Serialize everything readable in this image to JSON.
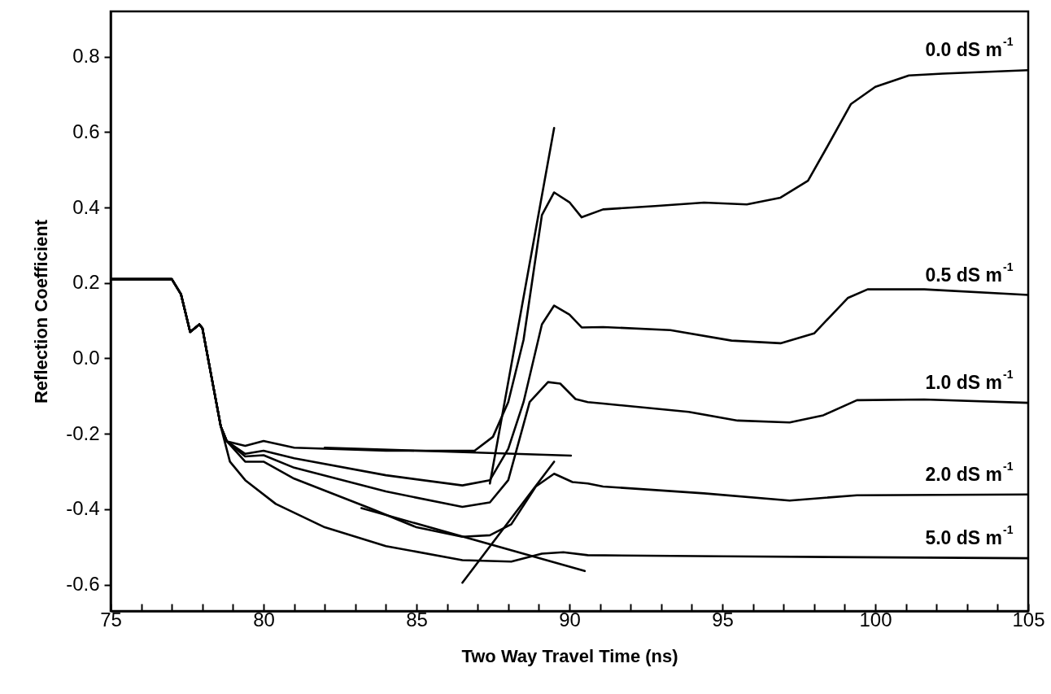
{
  "chart_data": {
    "type": "line",
    "xlabel": "Two Way Travel Time (ns)",
    "ylabel": "Reflection Coefficient",
    "xlim": [
      75,
      105
    ],
    "ylim": [
      -0.67,
      0.92
    ],
    "xticks": [
      75,
      {
        "value": 76,
        "label": null
      },
      {
        "value": 77,
        "label": null
      },
      {
        "value": 78,
        "label": null
      },
      {
        "value": 79,
        "label": null
      },
      80,
      {
        "value": 81,
        "label": null
      },
      {
        "value": 82,
        "label": null
      },
      {
        "value": 83,
        "label": null
      },
      {
        "value": 84,
        "label": null
      },
      85,
      {
        "value": 86,
        "label": null
      },
      {
        "value": 87,
        "label": null
      },
      {
        "value": 88,
        "label": null
      },
      {
        "value": 89,
        "label": null
      },
      90,
      {
        "value": 91,
        "label": null
      },
      {
        "value": 92,
        "label": null
      },
      {
        "value": 93,
        "label": null
      },
      {
        "value": 94,
        "label": null
      },
      95,
      {
        "value": 96,
        "label": null
      },
      {
        "value": 97,
        "label": null
      },
      {
        "value": 98,
        "label": null
      },
      {
        "value": 99,
        "label": null
      },
      100,
      {
        "value": 101,
        "label": null
      },
      {
        "value": 102,
        "label": null
      },
      {
        "value": 103,
        "label": null
      },
      {
        "value": 104,
        "label": null
      },
      105
    ],
    "yticks": [
      {
        "value": -0.6,
        "label": "-0.6"
      },
      {
        "value": -0.4,
        "label": "-0.4"
      },
      {
        "value": -0.2,
        "label": "-0.2"
      },
      {
        "value": 0,
        "label": "0.0"
      },
      {
        "value": 0.2,
        "label": "0.2"
      },
      {
        "value": 0.4,
        "label": "0.4"
      },
      {
        "value": 0.6,
        "label": "0.6"
      },
      {
        "value": 0.8,
        "label": "0.8"
      }
    ],
    "grid": false,
    "legend": false,
    "marker": "none",
    "line_style": "solid",
    "series": [
      {
        "name": "0.0 dS m$^{-1}$",
        "color": "#000000",
        "x": [
          75,
          77,
          77.3,
          77.6,
          77.9,
          78.0,
          78.3,
          78.6,
          78.8,
          79.4,
          80.0,
          81.0,
          84.0,
          86.9,
          87.5,
          88.0,
          88.5,
          89.1,
          89.5,
          90.0,
          90.4,
          91.1,
          92.8,
          94.4,
          95.8,
          96.9,
          97.8,
          98.4,
          99.2,
          100.0,
          101.1,
          102.2,
          105
        ],
        "values": [
          0.21,
          0.21,
          0.17,
          0.07,
          0.09,
          0.08,
          -0.05,
          -0.18,
          -0.22,
          -0.232,
          -0.219,
          -0.237,
          -0.245,
          -0.245,
          -0.208,
          -0.116,
          0.049,
          0.38,
          0.44,
          0.414,
          0.374,
          0.395,
          0.404,
          0.413,
          0.408,
          0.426,
          0.471,
          0.557,
          0.674,
          0.72,
          0.75,
          0.755,
          0.764
        ]
      },
      {
        "name": "0.5 dS m$^{-1}$",
        "color": "#000000",
        "x": [
          75,
          77,
          77.3,
          77.6,
          77.9,
          78.0,
          78.3,
          78.6,
          78.8,
          79.4,
          80.0,
          81.0,
          84.0,
          86.5,
          87.4,
          88.0,
          88.5,
          89.1,
          89.5,
          90.0,
          90.4,
          91.1,
          93.3,
          95.3,
          96.9,
          98.0,
          99.1,
          99.75,
          101.6,
          105
        ],
        "values": [
          0.21,
          0.21,
          0.17,
          0.07,
          0.09,
          0.08,
          -0.05,
          -0.18,
          -0.22,
          -0.253,
          -0.245,
          -0.265,
          -0.31,
          -0.337,
          -0.323,
          -0.24,
          -0.116,
          0.09,
          0.14,
          0.116,
          0.082,
          0.083,
          0.075,
          0.047,
          0.04,
          0.066,
          0.16,
          0.183,
          0.183,
          0.168
        ]
      },
      {
        "name": "1.0 dS m$^{-1}$",
        "color": "#000000",
        "x": [
          75,
          77,
          77.3,
          77.6,
          77.9,
          78.0,
          78.3,
          78.6,
          78.8,
          79.4,
          80.0,
          81.0,
          84.0,
          86.5,
          87.4,
          88.0,
          88.7,
          89.3,
          89.7,
          90.2,
          90.6,
          91.1,
          93.9,
          95.5,
          97.2,
          98.3,
          99.4,
          101.6,
          105
        ],
        "values": [
          0.21,
          0.21,
          0.17,
          0.07,
          0.09,
          0.08,
          -0.05,
          -0.18,
          -0.22,
          -0.26,
          -0.257,
          -0.29,
          -0.353,
          -0.394,
          -0.382,
          -0.323,
          -0.116,
          -0.063,
          -0.067,
          -0.108,
          -0.116,
          -0.12,
          -0.142,
          -0.165,
          -0.17,
          -0.151,
          -0.111,
          -0.109,
          -0.118
        ]
      },
      {
        "name": "2.0 dS m$^{-1}$",
        "color": "#000000",
        "x": [
          75,
          77,
          77.3,
          77.6,
          77.9,
          78.0,
          78.3,
          78.6,
          78.8,
          79.4,
          80.0,
          81.0,
          83.5,
          85.0,
          86.5,
          87.4,
          88.1,
          88.9,
          89.5,
          90.1,
          90.6,
          91.1,
          94.4,
          97.2,
          99.4,
          105
        ],
        "values": [
          0.21,
          0.21,
          0.17,
          0.07,
          0.09,
          0.08,
          -0.05,
          -0.18,
          -0.22,
          -0.274,
          -0.274,
          -0.319,
          -0.398,
          -0.448,
          -0.473,
          -0.469,
          -0.44,
          -0.34,
          -0.306,
          -0.328,
          -0.332,
          -0.34,
          -0.358,
          -0.377,
          -0.363,
          -0.361
        ]
      },
      {
        "name": "5.0 dS m$^{-1}$",
        "color": "#000000",
        "x": [
          75,
          77,
          77.3,
          77.6,
          77.9,
          78.0,
          78.3,
          78.6,
          78.9,
          79.4,
          80.4,
          82.0,
          84.0,
          86.5,
          88.1,
          89.1,
          89.8,
          90.6,
          95.0,
          105
        ],
        "values": [
          0.21,
          0.21,
          0.17,
          0.07,
          0.09,
          0.08,
          -0.05,
          -0.18,
          -0.274,
          -0.323,
          -0.386,
          -0.448,
          -0.498,
          -0.535,
          -0.539,
          -0.518,
          -0.514,
          -0.522,
          -0.525,
          -0.53
        ]
      },
      {
        "type": "line",
        "color": "#000000",
        "x": [
          82.0,
          90.05
        ],
        "values": [
          -0.237,
          -0.258
        ]
      },
      {
        "type": "line",
        "color": "#000000",
        "x": [
          87.4,
          89.5
        ],
        "values": [
          -0.332,
          0.611
        ]
      },
      {
        "type": "line",
        "color": "#000000",
        "x": [
          86.5,
          89.5
        ],
        "values": [
          -0.595,
          -0.274
        ]
      },
      {
        "type": "line",
        "color": "#000000",
        "x": [
          83.2,
          90.5
        ],
        "values": [
          -0.397,
          -0.564
        ]
      }
    ]
  }
}
